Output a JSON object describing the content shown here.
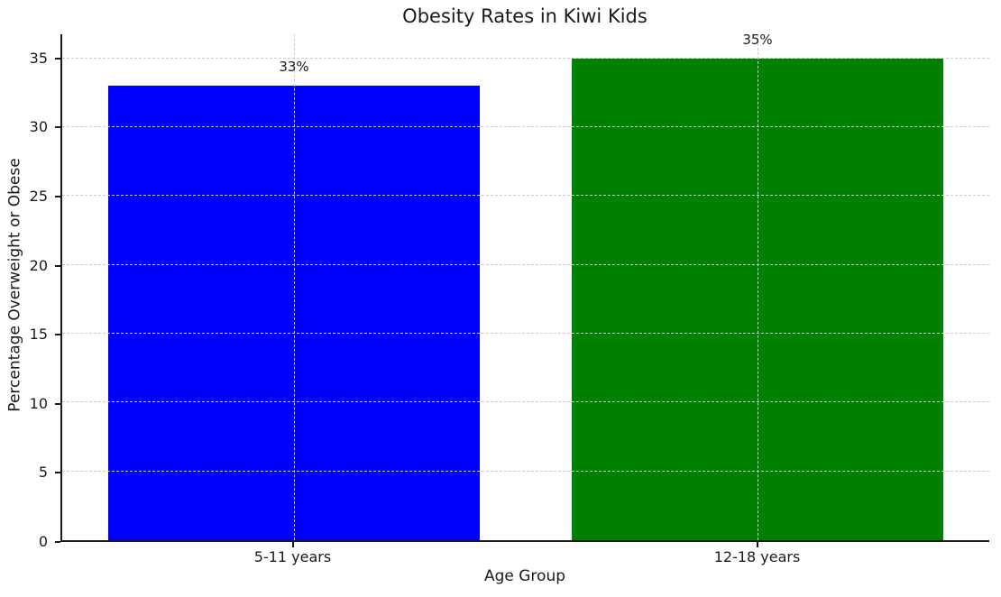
{
  "chart_data": {
    "type": "bar",
    "title": "Obesity Rates in Kiwi Kids",
    "xlabel": "Age Group",
    "ylabel": "Percentage Overweight or Obese",
    "categories": [
      "5-11 years",
      "12-18 years"
    ],
    "values": [
      33,
      35
    ],
    "value_labels": [
      "33%",
      "35%"
    ],
    "bar_colors": [
      "#0000ff",
      "#008000"
    ],
    "ylim": [
      0,
      36.75
    ],
    "yticks": [
      0,
      5,
      10,
      15,
      20,
      25,
      30,
      35
    ],
    "grid": {
      "visible": true,
      "line_style": "dashed",
      "axes": "both"
    },
    "legend_position": "none",
    "style": {
      "text_color": "#1a1a1a",
      "grid_color": "#cccccc",
      "spine_color": "#1a1a1a",
      "background": "#ffffff"
    }
  }
}
